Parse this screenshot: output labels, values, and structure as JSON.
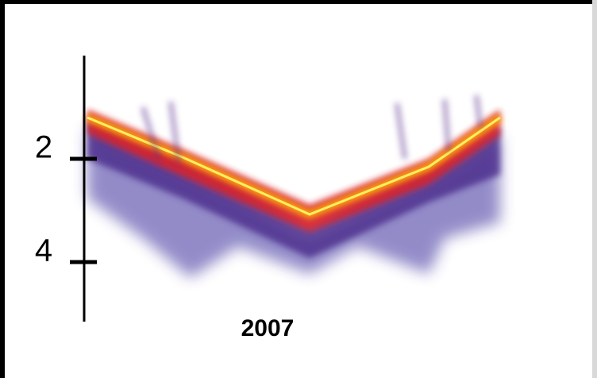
{
  "axis": {
    "ticks": [
      2,
      4
    ]
  },
  "caption": "2007"
}
